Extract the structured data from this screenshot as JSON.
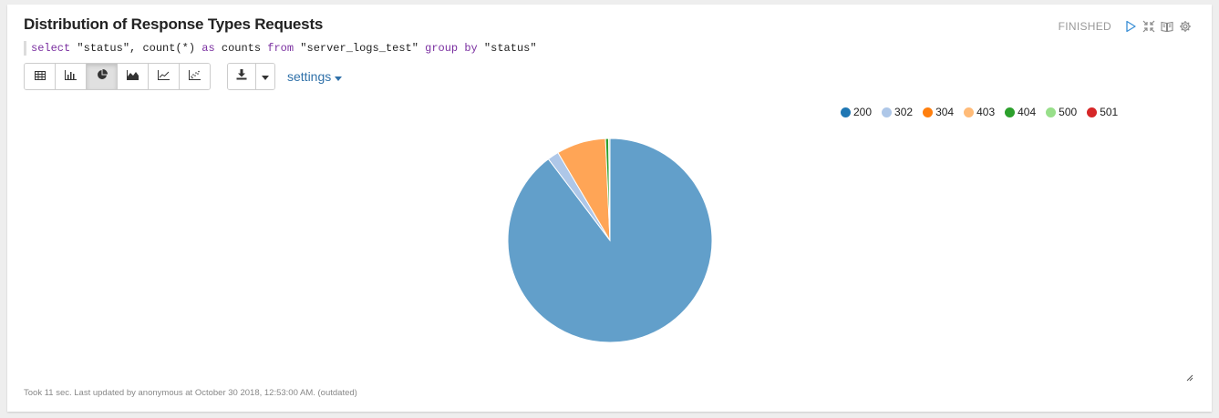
{
  "panel": {
    "title": "Distribution of Response Types Requests",
    "status": "FINISHED",
    "query": [
      {
        "t": "select",
        "k": "kw"
      },
      {
        "t": " \"status\", ",
        "k": "pl"
      },
      {
        "t": "count",
        "k": "fn"
      },
      {
        "t": "(*) ",
        "k": "pl"
      },
      {
        "t": "as",
        "k": "kw"
      },
      {
        "t": " counts ",
        "k": "pl"
      },
      {
        "t": "from",
        "k": "kw"
      },
      {
        "t": " \"server_logs_test\" ",
        "k": "pl"
      },
      {
        "t": "group by",
        "k": "kw"
      },
      {
        "t": " \"status\"",
        "k": "pl"
      }
    ],
    "settings_label": "settings",
    "footer": "Took 11 sec. Last updated by anonymous at October 30 2018, 12:53:00 AM. (outdated)"
  },
  "toolbar": {
    "buttons": [
      {
        "name": "table-view-button",
        "icon": "table-icon",
        "active": false
      },
      {
        "name": "bar-chart-button",
        "icon": "bar-chart-icon",
        "active": false
      },
      {
        "name": "pie-chart-button",
        "icon": "pie-chart-icon",
        "active": true
      },
      {
        "name": "area-chart-button",
        "icon": "area-chart-icon",
        "active": false
      },
      {
        "name": "line-chart-button",
        "icon": "line-chart-icon",
        "active": false
      },
      {
        "name": "scatter-chart-button",
        "icon": "scatter-chart-icon",
        "active": false
      }
    ]
  },
  "colors": {
    "accent": "#3071a9"
  },
  "chart_data": {
    "type": "pie",
    "categories": [
      "200",
      "302",
      "304",
      "403",
      "404",
      "500",
      "501"
    ],
    "values": [
      89.7,
      1.8,
      0.0,
      7.8,
      0.5,
      0.2,
      0.0
    ],
    "slice_colors": [
      "#629fca",
      "#aec7e8",
      "#ff7f0e",
      "#ffa556",
      "#2ca02c",
      "#98df8a",
      "#d62728"
    ],
    "legend_colors": [
      "#1f77b4",
      "#aec7e8",
      "#ff7f0e",
      "#ffbb78",
      "#2ca02c",
      "#98df8a",
      "#d62728"
    ],
    "legend_position": "top-right",
    "title": ""
  }
}
